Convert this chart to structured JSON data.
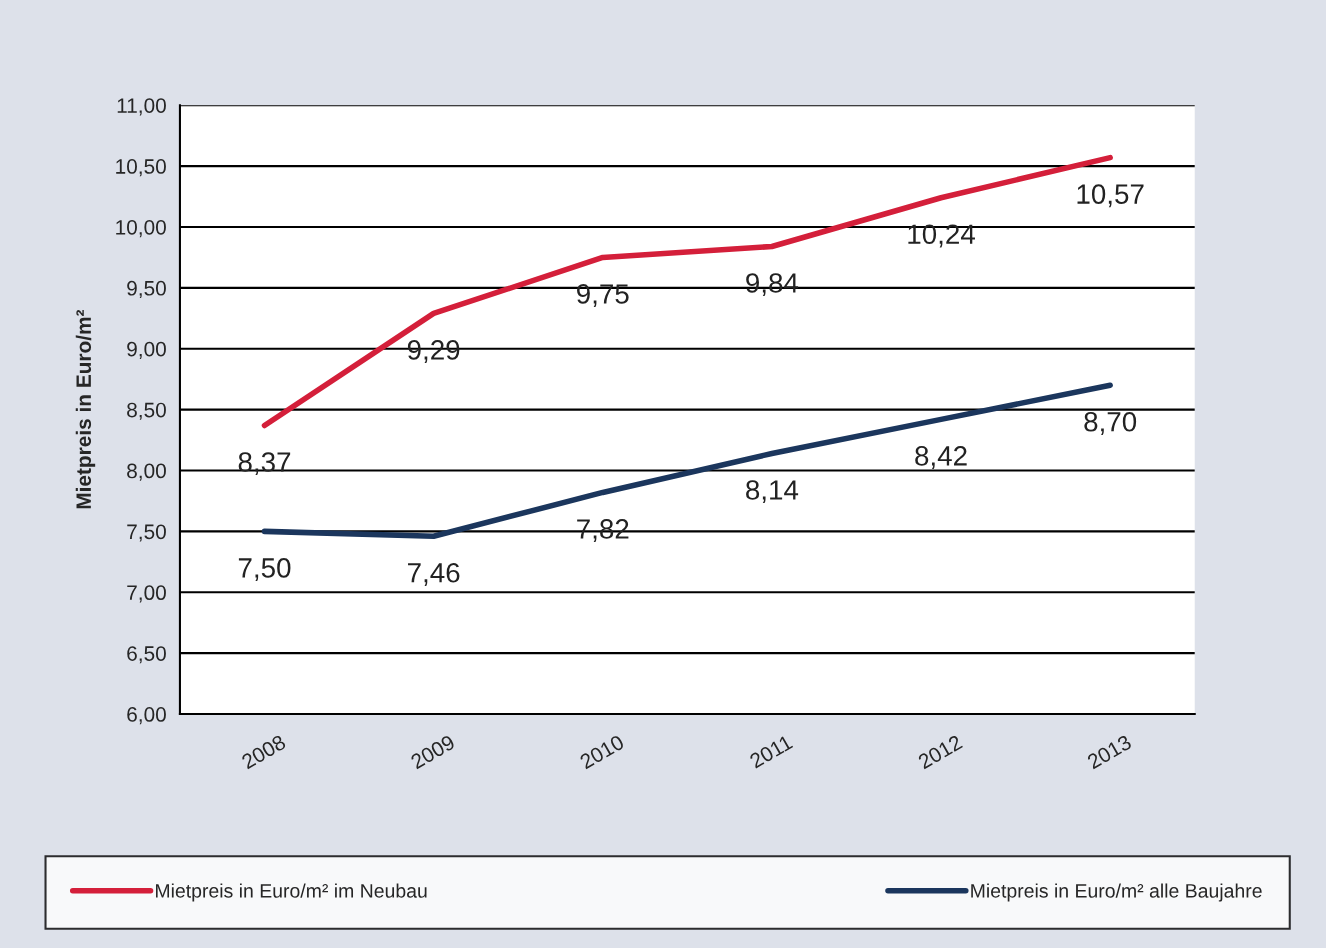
{
  "chart_data": {
    "type": "line",
    "ylabel": "Mietpreis in Euro/m²",
    "categories": [
      "2008",
      "2009",
      "2010",
      "2011",
      "2012",
      "2013"
    ],
    "series": [
      {
        "name": "Mietpreis in Euro/m² im Neubau",
        "color": "#d41f3a",
        "values": [
          8.37,
          9.29,
          9.75,
          9.84,
          10.24,
          10.57
        ],
        "value_labels": [
          "8,37",
          "9,29",
          "9,75",
          "9,84",
          "10,24",
          "10,57"
        ]
      },
      {
        "name": "Mietpreis in Euro/m² alle Baujahre",
        "color": "#1b365d",
        "values": [
          7.5,
          7.46,
          7.82,
          8.14,
          8.42,
          8.7
        ],
        "value_labels": [
          "7,50",
          "7,46",
          "7,82",
          "8,14",
          "8,42",
          "8,70"
        ]
      }
    ],
    "ylim": [
      6,
      11
    ],
    "yticks": [
      {
        "value": 6,
        "label": "6,00"
      },
      {
        "value": 6.5,
        "label": "6,50"
      },
      {
        "value": 7,
        "label": "7,00"
      },
      {
        "value": 7.5,
        "label": "7,50"
      },
      {
        "value": 8,
        "label": "8,00"
      },
      {
        "value": 8.5,
        "label": "8,50"
      },
      {
        "value": 9,
        "label": "9,00"
      },
      {
        "value": 9.5,
        "label": "9,50"
      },
      {
        "value": 10,
        "label": "10,00"
      },
      {
        "value": 10.5,
        "label": "10,50"
      },
      {
        "value": 11,
        "label": "11,00"
      }
    ],
    "grid": "y",
    "legend": "bottom",
    "marker": "none",
    "line_style": "solid"
  }
}
